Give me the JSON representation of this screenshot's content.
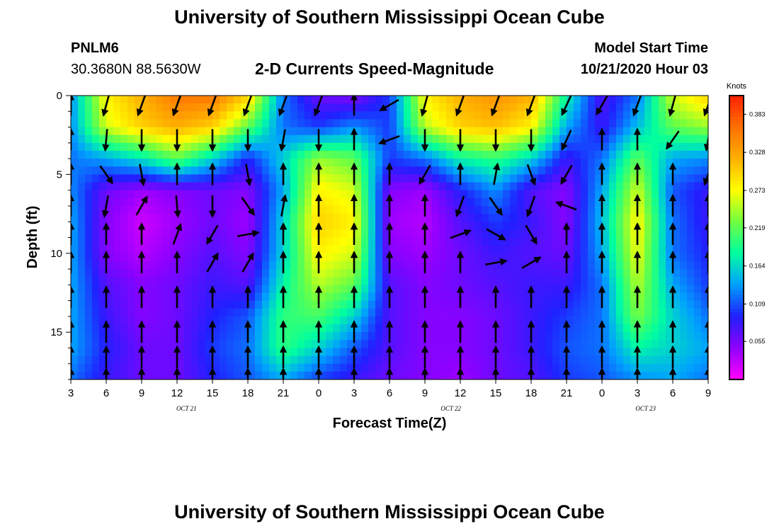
{
  "header": {
    "title": "University of Southern Mississippi Ocean Cube",
    "station": "PNLM6",
    "coords": "30.3680N 88.5630W",
    "subtitle": "2-D Currents Speed-Magnitude",
    "start_label": "Model Start Time",
    "start_value": "10/21/2020 Hour 03"
  },
  "footer": {
    "title": "University of Southern Mississippi Ocean Cube"
  },
  "chart_data": {
    "type": "heatmap",
    "title": "2-D Currents Speed-Magnitude",
    "xlabel": "Forecast Time(Z)",
    "ylabel": "Depth (ft)",
    "x_tick_labels": [
      "3",
      "6",
      "9",
      "12",
      "15",
      "18",
      "21",
      "0",
      "3",
      "6",
      "9",
      "12",
      "15",
      "18",
      "21",
      "0",
      "3",
      "6",
      "9"
    ],
    "x_range_hours": [
      0,
      54
    ],
    "date_labels": [
      {
        "text": "OCT 21",
        "hour": 9.8
      },
      {
        "text": "OCT 22",
        "hour": 32.2
      },
      {
        "text": "OCT 23",
        "hour": 48.7
      }
    ],
    "y_ticks": [
      0,
      5,
      10,
      15
    ],
    "ylim": [
      0,
      18
    ],
    "y_inverted": true,
    "colorbar": {
      "label": "Knots",
      "ticks": [
        "0.383",
        "0.328",
        "0.273",
        "0.219",
        "0.164",
        "0.109",
        "0.055"
      ],
      "range": [
        0.0,
        0.41
      ]
    },
    "colors": {
      "cmap": [
        "#ff00ff",
        "#9000ff",
        "#2020ff",
        "#00a0ff",
        "#00ffa0",
        "#70ff40",
        "#ffff00",
        "#ffb000",
        "#ff7000",
        "#ff2000"
      ]
    },
    "speed_grid": {
      "depths_ft": [
        0,
        2,
        4,
        6,
        8,
        10,
        12,
        14,
        16,
        18
      ],
      "hours": [
        0,
        3,
        6,
        9,
        12,
        15,
        18,
        21,
        24,
        27,
        30,
        33,
        36,
        39,
        42,
        45,
        48,
        51,
        54
      ],
      "values": [
        [
          0.13,
          0.28,
          0.32,
          0.36,
          0.36,
          0.3,
          0.12,
          0.06,
          0.05,
          0.1,
          0.28,
          0.32,
          0.34,
          0.32,
          0.18,
          0.07,
          0.12,
          0.26,
          0.3
        ],
        [
          0.13,
          0.26,
          0.3,
          0.32,
          0.3,
          0.22,
          0.12,
          0.1,
          0.13,
          0.1,
          0.25,
          0.3,
          0.31,
          0.28,
          0.14,
          0.08,
          0.15,
          0.22,
          0.24
        ],
        [
          0.12,
          0.14,
          0.17,
          0.22,
          0.16,
          0.09,
          0.16,
          0.24,
          0.22,
          0.1,
          0.12,
          0.18,
          0.2,
          0.16,
          0.08,
          0.12,
          0.22,
          0.14,
          0.13
        ],
        [
          0.13,
          0.06,
          0.04,
          0.05,
          0.06,
          0.05,
          0.14,
          0.28,
          0.26,
          0.05,
          0.04,
          0.09,
          0.13,
          0.07,
          0.05,
          0.14,
          0.26,
          0.11,
          0.08
        ],
        [
          0.14,
          0.05,
          0.02,
          0.04,
          0.06,
          0.04,
          0.16,
          0.3,
          0.28,
          0.04,
          0.03,
          0.07,
          0.1,
          0.08,
          0.05,
          0.15,
          0.28,
          0.12,
          0.08
        ],
        [
          0.14,
          0.05,
          0.03,
          0.05,
          0.07,
          0.05,
          0.16,
          0.28,
          0.26,
          0.05,
          0.04,
          0.06,
          0.08,
          0.07,
          0.06,
          0.14,
          0.27,
          0.12,
          0.09
        ],
        [
          0.14,
          0.07,
          0.05,
          0.06,
          0.08,
          0.07,
          0.18,
          0.25,
          0.22,
          0.07,
          0.05,
          0.06,
          0.07,
          0.08,
          0.08,
          0.12,
          0.25,
          0.14,
          0.1
        ],
        [
          0.14,
          0.08,
          0.05,
          0.06,
          0.09,
          0.11,
          0.2,
          0.21,
          0.16,
          0.07,
          0.05,
          0.05,
          0.06,
          0.08,
          0.1,
          0.12,
          0.23,
          0.16,
          0.12
        ],
        [
          0.14,
          0.09,
          0.06,
          0.06,
          0.1,
          0.12,
          0.2,
          0.16,
          0.11,
          0.07,
          0.05,
          0.05,
          0.06,
          0.08,
          0.11,
          0.12,
          0.18,
          0.16,
          0.14
        ],
        [
          0.12,
          0.08,
          0.06,
          0.06,
          0.09,
          0.11,
          0.14,
          0.1,
          0.08,
          0.06,
          0.05,
          0.04,
          0.06,
          0.07,
          0.1,
          0.11,
          0.13,
          0.14,
          0.12
        ]
      ]
    },
    "vectors": {
      "note": "arrow direction in degrees clockwise from up, per time column and depth row",
      "depths_ft": [
        0.6,
        2.8,
        5.0,
        7.0,
        8.8,
        10.6,
        12.8,
        15.0,
        16.6,
        18.0
      ],
      "hours": [
        0,
        3,
        6,
        9,
        12,
        15,
        18,
        21,
        24,
        27,
        30,
        33,
        36,
        39,
        42,
        45,
        48,
        51,
        54
      ],
      "directions": [
        [
          0,
          195,
          200,
          200,
          200,
          200,
          200,
          200,
          0,
          240,
          195,
          200,
          200,
          200,
          205,
          210,
          200,
          195,
          200
        ],
        [
          0,
          185,
          180,
          180,
          180,
          180,
          190,
          180,
          0,
          250,
          180,
          180,
          180,
          180,
          205,
          0,
          0,
          215,
          190
        ],
        [
          0,
          145,
          170,
          0,
          0,
          170,
          0,
          0,
          0,
          0,
          210,
          0,
          10,
          160,
          210,
          0,
          0,
          0,
          200
        ],
        [
          0,
          190,
          30,
          175,
          180,
          145,
          10,
          0,
          0,
          0,
          0,
          200,
          145,
          200,
          290,
          0,
          0,
          0,
          0
        ],
        [
          0,
          0,
          0,
          20,
          210,
          80,
          0,
          0,
          0,
          0,
          0,
          70,
          120,
          150,
          0,
          0,
          0,
          0,
          0
        ],
        [
          0,
          0,
          0,
          0,
          30,
          30,
          0,
          0,
          0,
          0,
          0,
          0,
          80,
          60,
          0,
          0,
          0,
          0,
          0
        ],
        [
          0,
          0,
          0,
          0,
          0,
          0,
          0,
          0,
          0,
          0,
          0,
          0,
          0,
          0,
          0,
          0,
          0,
          0,
          0
        ],
        [
          0,
          0,
          0,
          0,
          0,
          0,
          0,
          0,
          0,
          0,
          0,
          0,
          0,
          0,
          0,
          0,
          0,
          0,
          0
        ],
        [
          0,
          0,
          0,
          0,
          0,
          0,
          0,
          0,
          0,
          0,
          0,
          0,
          0,
          0,
          0,
          0,
          0,
          0,
          0
        ],
        [
          0,
          0,
          0,
          0,
          0,
          0,
          0,
          0,
          0,
          0,
          0,
          0,
          0,
          0,
          0,
          0,
          0,
          0,
          0
        ]
      ]
    }
  }
}
